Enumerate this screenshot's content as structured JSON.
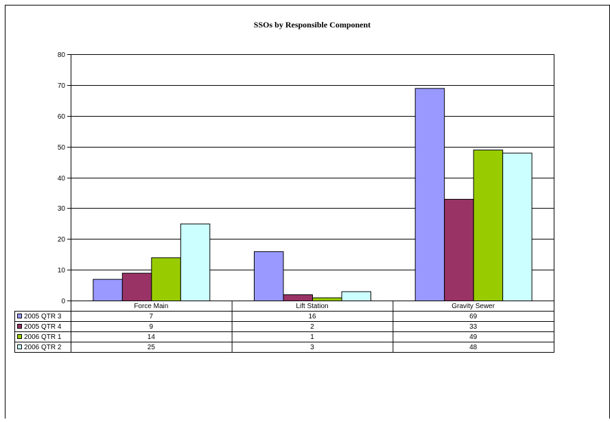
{
  "chart_data": {
    "type": "bar",
    "title": "SSOs by Responsible Component",
    "xlabel": "",
    "ylabel": "",
    "ylim": [
      0,
      80
    ],
    "yticks": [
      0,
      10,
      20,
      30,
      40,
      50,
      60,
      70,
      80
    ],
    "categories": [
      "Force Main",
      "Lift Station",
      "Gravity Sewer"
    ],
    "grid": true,
    "legend": "data table below chart",
    "series": [
      {
        "name": "2005 QTR 3",
        "color": "#9999ff",
        "values": [
          7,
          16,
          69
        ]
      },
      {
        "name": "2005 QTR 4",
        "color": "#993366",
        "values": [
          9,
          2,
          33
        ]
      },
      {
        "name": "2006 QTR 1",
        "color": "#99cc00",
        "values": [
          14,
          1,
          49
        ]
      },
      {
        "name": "2006 QTR 2",
        "color": "#ccffff",
        "values": [
          25,
          3,
          48
        ]
      }
    ]
  }
}
